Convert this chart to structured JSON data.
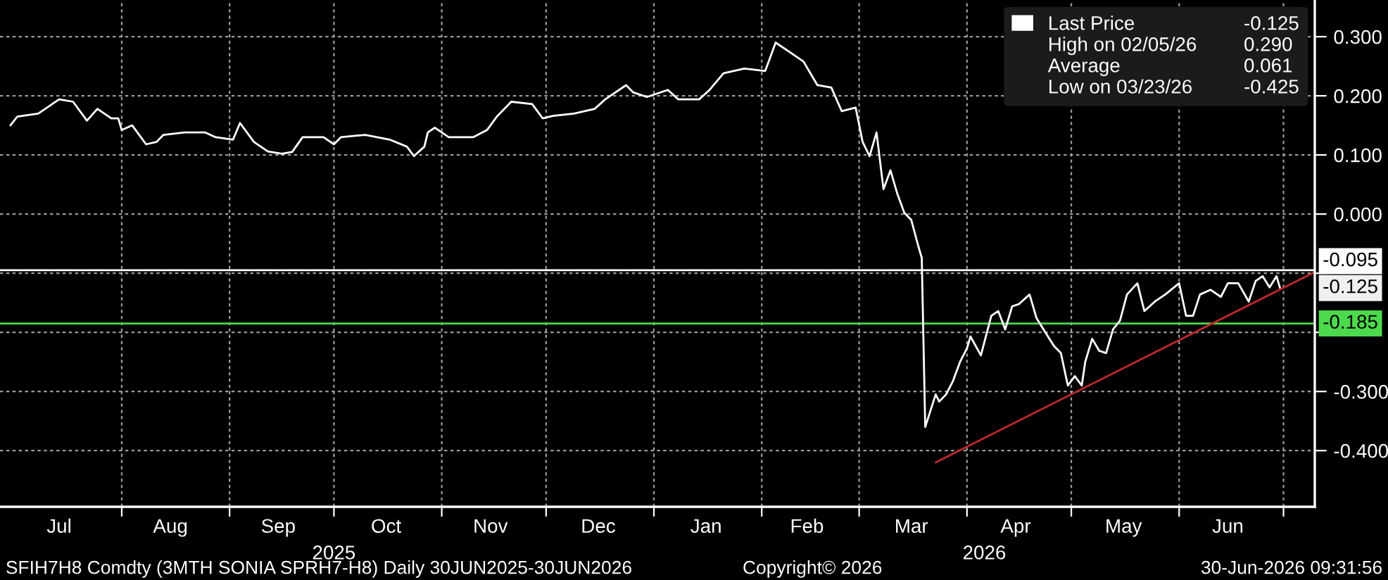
{
  "chart_data": {
    "type": "line",
    "x": [
      "2025-06-30",
      "2025-07-02",
      "2025-07-08",
      "2025-07-14",
      "2025-07-18",
      "2025-07-22",
      "2025-07-25",
      "2025-07-29",
      "2025-07-31",
      "2025-08-01",
      "2025-08-04",
      "2025-08-08",
      "2025-08-11",
      "2025-08-13",
      "2025-08-19",
      "2025-08-25",
      "2025-08-28",
      "2025-09-02",
      "2025-09-04",
      "2025-09-08",
      "2025-09-12",
      "2025-09-16",
      "2025-09-19",
      "2025-09-22",
      "2025-09-28",
      "2025-10-01",
      "2025-10-03",
      "2025-10-10",
      "2025-10-17",
      "2025-10-22",
      "2025-10-24",
      "2025-10-27",
      "2025-10-28",
      "2025-10-30",
      "2025-11-03",
      "2025-11-10",
      "2025-11-14",
      "2025-11-17",
      "2025-11-21",
      "2025-11-27",
      "2025-11-30",
      "2025-12-03",
      "2025-12-09",
      "2025-12-15",
      "2025-12-18",
      "2025-12-24",
      "2025-12-26",
      "2025-12-30",
      "2026-01-05",
      "2026-01-08",
      "2026-01-14",
      "2026-01-17",
      "2026-01-21",
      "2026-01-27",
      "2026-02-02",
      "2026-02-05",
      "2026-02-09",
      "2026-02-13",
      "2026-02-17",
      "2026-02-21",
      "2026-02-24",
      "2026-02-28",
      "2026-03-02",
      "2026-03-04",
      "2026-03-06",
      "2026-03-08",
      "2026-03-10",
      "2026-03-12",
      "2026-03-14",
      "2026-03-16",
      "2026-03-18",
      "2026-03-19",
      "2026-03-20",
      "2026-03-23",
      "2026-03-24",
      "2026-03-26",
      "2026-03-28",
      "2026-03-30",
      "2026-04-01",
      "2026-04-02",
      "2026-04-05",
      "2026-04-08",
      "2026-04-10",
      "2026-04-12",
      "2026-04-14",
      "2026-04-16",
      "2026-04-19",
      "2026-04-21",
      "2026-04-23",
      "2026-04-26",
      "2026-04-28",
      "2026-04-30",
      "2026-05-02",
      "2026-05-04",
      "2026-05-05",
      "2026-05-07",
      "2026-05-09",
      "2026-05-11",
      "2026-05-13",
      "2026-05-15",
      "2026-05-17",
      "2026-05-20",
      "2026-05-22",
      "2026-05-25",
      "2026-05-28",
      "2026-06-01",
      "2026-06-03",
      "2026-06-05",
      "2026-06-07",
      "2026-06-10",
      "2026-06-13",
      "2026-06-15",
      "2026-06-18",
      "2026-06-21",
      "2026-06-23",
      "2026-06-25",
      "2026-06-27",
      "2026-06-29",
      "2026-06-30"
    ],
    "series": [
      {
        "name": "Last Price",
        "color": "#ffffff",
        "values": [
          0.15,
          0.165,
          0.17,
          0.194,
          0.19,
          0.158,
          0.178,
          0.162,
          0.162,
          0.142,
          0.15,
          0.118,
          0.122,
          0.134,
          0.138,
          0.138,
          0.13,
          0.126,
          0.154,
          0.122,
          0.106,
          0.102,
          0.105,
          0.13,
          0.13,
          0.118,
          0.13,
          0.134,
          0.126,
          0.114,
          0.098,
          0.114,
          0.138,
          0.146,
          0.13,
          0.13,
          0.142,
          0.166,
          0.19,
          0.186,
          0.162,
          0.166,
          0.17,
          0.178,
          0.194,
          0.218,
          0.206,
          0.198,
          0.21,
          0.194,
          0.194,
          0.21,
          0.238,
          0.246,
          0.242,
          0.29,
          0.274,
          0.258,
          0.218,
          0.214,
          0.174,
          0.18,
          0.122,
          0.098,
          0.138,
          0.042,
          0.074,
          0.034,
          0.002,
          -0.01,
          -0.054,
          -0.074,
          -0.36,
          -0.305,
          -0.317,
          -0.305,
          -0.282,
          -0.25,
          -0.227,
          -0.207,
          -0.239,
          -0.172,
          -0.164,
          -0.195,
          -0.156,
          -0.152,
          -0.136,
          -0.176,
          -0.195,
          -0.223,
          -0.235,
          -0.29,
          -0.274,
          -0.29,
          -0.25,
          -0.211,
          -0.231,
          -0.235,
          -0.195,
          -0.18,
          -0.136,
          -0.117,
          -0.164,
          -0.148,
          -0.136,
          -0.117,
          -0.172,
          -0.172,
          -0.136,
          -0.128,
          -0.14,
          -0.117,
          -0.117,
          -0.148,
          -0.113,
          -0.105,
          -0.124,
          -0.105,
          -0.125
        ]
      },
      {
        "type": "line",
        "color": "#c0282d",
        "x": [
          "2026-03-23",
          "2026-07-10"
        ],
        "values": [
          -0.42,
          -0.098
        ]
      }
    ],
    "xlim": [
      "2025-06-27",
      "2026-07-10"
    ],
    "xticks": [
      {
        "value": "2025-07-14",
        "label": "Jul"
      },
      {
        "value": "2025-08-01",
        "label": null
      },
      {
        "value": "2025-08-15",
        "label": "Aug"
      },
      {
        "value": "2025-09-01",
        "label": null
      },
      {
        "value": "2025-09-15",
        "label": "Sep"
      },
      {
        "value": "2025-10-01",
        "label": null
      },
      {
        "value": "2025-10-16",
        "label": "Oct"
      },
      {
        "value": "2025-11-01",
        "label": null
      },
      {
        "value": "2025-11-15",
        "label": "Nov"
      },
      {
        "value": "2025-12-01",
        "label": null
      },
      {
        "value": "2025-12-16",
        "label": "Dec"
      },
      {
        "value": "2026-01-01",
        "label": null
      },
      {
        "value": "2026-01-16",
        "label": "Jan"
      },
      {
        "value": "2026-02-01",
        "label": null
      },
      {
        "value": "2026-02-14",
        "label": "Feb"
      },
      {
        "value": "2026-03-01",
        "label": null
      },
      {
        "value": "2026-03-16",
        "label": "Mar"
      },
      {
        "value": "2026-04-01",
        "label": null
      },
      {
        "value": "2026-04-15",
        "label": "Apr"
      },
      {
        "value": "2026-05-01",
        "label": null
      },
      {
        "value": "2026-05-16",
        "label": "May"
      },
      {
        "value": "2026-06-01",
        "label": null
      },
      {
        "value": "2026-06-15",
        "label": "Jun"
      },
      {
        "value": "2026-07-01",
        "label": null
      }
    ],
    "x2lim": [
      "2025-06-27",
      "2026-07-10"
    ],
    "x2ticks": [
      {
        "value": "2025-10-01",
        "label": "2025"
      },
      {
        "value": "2026-04-06",
        "label": "2026"
      }
    ],
    "ylim": [
      -0.495,
      0.362
    ],
    "yticks": [
      {
        "value": 0.3,
        "label": "0.300"
      },
      {
        "value": 0.2,
        "label": "0.200"
      },
      {
        "value": 0.1,
        "label": "0.100"
      },
      {
        "value": 0.0,
        "label": "0.000"
      },
      {
        "value": -0.1,
        "label": null
      },
      {
        "value": -0.2,
        "label": null
      },
      {
        "value": -0.3,
        "label": "-0.300"
      },
      {
        "value": -0.4,
        "label": "-0.400"
      }
    ],
    "ref_lines": [
      {
        "axis": "y",
        "value": -0.095,
        "label": "-0.095",
        "color": "#ffffff"
      },
      {
        "axis": "y",
        "value": -0.185,
        "label": "-0.185",
        "color": "#4cd94c"
      }
    ],
    "annotations": [
      "-0.125",
      "High on 02/05/26",
      "0.290",
      "Average",
      "0.061",
      "Low on 03/23/26",
      "-0.425",
      "-0.125",
      "SFIH7H8 Comdty (3MTH SONIA SPRH7-H8) Daily 30JUN2025-30JUN2026",
      "Copyright© 2026",
      "30-Jun-2026 09:31:56"
    ],
    "grid": true,
    "legend": "top right"
  }
}
